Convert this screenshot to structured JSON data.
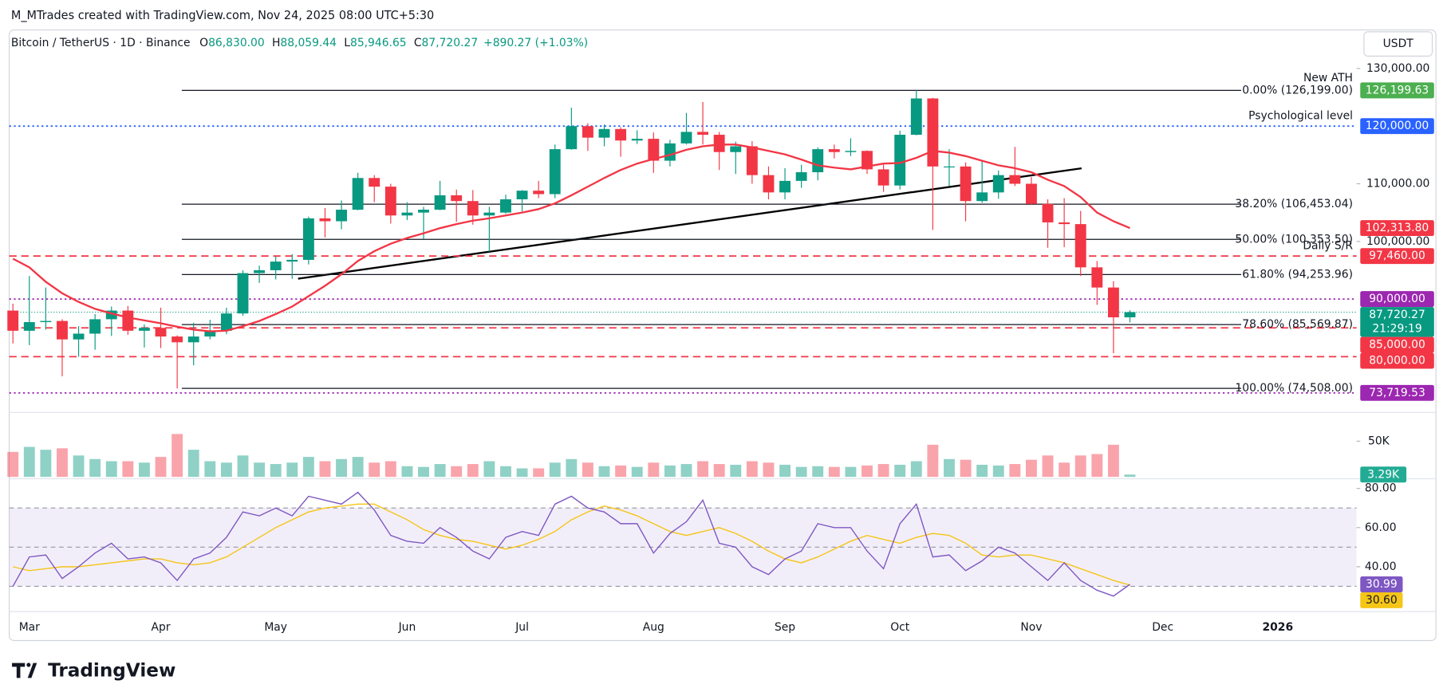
{
  "header": {
    "byline": "M_MTrades created with TradingView.com, Nov 24, 2025 08:00 UTC+5:30",
    "symbol": "Bitcoin / TetherUS · 1D · Binance",
    "ohlc": [
      [
        "O",
        "86,830.00"
      ],
      [
        "H",
        "88,059.44"
      ],
      [
        "L",
        "85,946.65"
      ],
      [
        "C",
        "87,720.27"
      ]
    ],
    "change": "+890.27 (+1.03%)",
    "currency": "USDT"
  },
  "footer": {
    "brand": "TradingView"
  },
  "chart_data": {
    "type": "candlestick",
    "categories": [
      null,
      "Mar",
      null,
      null,
      null,
      null,
      null,
      null,
      null,
      "Apr",
      null,
      null,
      null,
      null,
      null,
      null,
      "May",
      null,
      null,
      null,
      null,
      null,
      null,
      null,
      "Jun",
      null,
      null,
      null,
      null,
      null,
      null,
      "Jul",
      null,
      null,
      null,
      null,
      null,
      null,
      null,
      "Aug",
      null,
      null,
      null,
      null,
      null,
      null,
      null,
      "Sep",
      null,
      null,
      null,
      null,
      null,
      null,
      "Oct",
      null,
      null,
      null,
      null,
      null,
      null,
      null,
      "Nov",
      null,
      null,
      null,
      null,
      null,
      null,
      null,
      "Dec",
      null,
      null,
      null,
      null,
      null,
      null,
      "2026",
      null
    ],
    "open": [
      88000,
      84500,
      86000,
      86200,
      83000,
      84000,
      86500,
      88000,
      84500,
      85000,
      83500,
      82500,
      83500,
      84500,
      87500,
      94500,
      95000,
      96500,
      96800,
      104000,
      103500,
      105500,
      111000,
      109500,
      104500,
      105000,
      105500,
      108000,
      107000,
      104500,
      105000,
      107300,
      108800,
      108200,
      116000,
      120000,
      118000,
      119500,
      117500,
      117800,
      114000,
      117000,
      119000,
      118500,
      115500,
      116500,
      111500,
      108500,
      110500,
      112000,
      116000,
      115500,
      115700,
      112500,
      109700,
      118500,
      124800,
      113000,
      113000,
      107000,
      108500,
      111500,
      110000,
      106500,
      103300,
      103000,
      95500,
      92000,
      86830,
      null,
      null,
      null,
      null,
      null,
      null,
      null,
      null,
      null,
      null
    ],
    "high": [
      89200,
      94000,
      92000,
      86500,
      85300,
      87400,
      88700,
      88800,
      85600,
      88500,
      83700,
      85900,
      86400,
      88500,
      95000,
      95800,
      97400,
      97800,
      104300,
      105800,
      107100,
      111900,
      111500,
      110000,
      106800,
      106000,
      110500,
      109000,
      108900,
      106000,
      108100,
      108900,
      110500,
      116800,
      123200,
      120500,
      120300,
      119800,
      119300,
      118900,
      117600,
      122300,
      124200,
      119000,
      117300,
      117400,
      113000,
      112700,
      113300,
      116300,
      116800,
      117900,
      115800,
      113300,
      119200,
      126199,
      124900,
      116000,
      113700,
      114000,
      112300,
      116400,
      111200,
      107300,
      107500,
      105300,
      96600,
      93100,
      88059.44,
      null,
      null,
      null,
      null,
      null,
      null,
      null,
      null,
      null,
      null
    ],
    "low": [
      82300,
      82000,
      84700,
      76600,
      80000,
      81200,
      83600,
      83800,
      81600,
      81500,
      74500,
      78500,
      83000,
      83900,
      87100,
      92800,
      93400,
      93500,
      96000,
      100700,
      102100,
      105400,
      106800,
      103100,
      103700,
      100400,
      105400,
      103400,
      102900,
      98200,
      104800,
      105200,
      107500,
      107500,
      115900,
      115700,
      116500,
      114700,
      116900,
      111900,
      113000,
      116800,
      116800,
      112400,
      111700,
      110000,
      107300,
      107300,
      109300,
      110600,
      114400,
      114800,
      111700,
      108600,
      109000,
      118400,
      102000,
      109600,
      103500,
      106700,
      107400,
      109600,
      106300,
      98900,
      99000,
      94000,
      89000,
      80600,
      85946.65,
      null,
      null,
      null,
      null,
      null,
      null,
      null,
      null,
      null,
      null
    ],
    "close": [
      84500,
      86000,
      86200,
      83000,
      84000,
      86500,
      88000,
      84500,
      85000,
      83500,
      82500,
      83500,
      84500,
      87500,
      94500,
      95000,
      96500,
      96800,
      104000,
      103500,
      105500,
      111000,
      109500,
      104500,
      105000,
      105500,
      108000,
      107000,
      104500,
      105000,
      107300,
      108800,
      108200,
      116000,
      120000,
      118000,
      119500,
      117500,
      117800,
      114000,
      117000,
      119000,
      118500,
      115500,
      116500,
      111500,
      108500,
      110500,
      112000,
      116000,
      115500,
      115700,
      112500,
      109700,
      118500,
      124800,
      113000,
      113000,
      107000,
      108500,
      111500,
      110000,
      106500,
      103300,
      103000,
      95500,
      92000,
      86830,
      87720.27,
      null,
      null,
      null,
      null,
      null,
      null,
      null,
      null,
      null,
      null
    ],
    "colors": {
      "up": "#089981",
      "down": "#f23645"
    },
    "ylim": [
      70500,
      136200
    ],
    "yticks": [
      {
        "value": 130000,
        "label": "130,000.00"
      },
      {
        "value": 110000,
        "label": "110,000.00"
      },
      {
        "value": 100000,
        "label": "100,000.00"
      }
    ],
    "ma": {
      "color": "#f23645",
      "values": [
        97000,
        95500,
        93000,
        91000,
        89500,
        88300,
        87500,
        86800,
        86300,
        85800,
        85200,
        84700,
        84400,
        84500,
        85300,
        86200,
        87400,
        88700,
        90500,
        92300,
        94300,
        96600,
        98300,
        99600,
        100600,
        101400,
        102300,
        103000,
        103600,
        104000,
        104500,
        105000,
        105600,
        106600,
        108000,
        109500,
        111000,
        112400,
        113500,
        114300,
        115000,
        115900,
        116500,
        116800,
        116800,
        116300,
        115700,
        115100,
        114200,
        113200,
        112800,
        112500,
        113000,
        113500,
        113600,
        114500,
        115700,
        115400,
        114800,
        114000,
        113200,
        112700,
        112000,
        110700,
        109600,
        107700,
        105000,
        103500,
        102313.8,
        null,
        null,
        null,
        null,
        null,
        null,
        null,
        null,
        null,
        null
      ]
    },
    "fib": [
      {
        "value": 126199,
        "label": "0.00% (126,199.00)",
        "note": "New ATH",
        "note_color": "#4caf50"
      },
      {
        "value": 106453.04,
        "label": "38.20% (106,453.04)"
      },
      {
        "value": 100353.5,
        "label": "50.00% (100,353.50)"
      },
      {
        "value": 94253.96,
        "label": "61.80% (94,253.96)"
      },
      {
        "value": 85569.87,
        "label": "78.60% (85,569.87)"
      },
      {
        "value": 74508,
        "label": "100.00% (74,508.00)"
      }
    ],
    "levels": [
      {
        "value": 120000,
        "color": "#2962ff",
        "style": "dotted",
        "note": "Psychological level"
      },
      {
        "value": 97460,
        "color": "#f23645",
        "style": "dashed",
        "note": "Daily S/R"
      },
      {
        "value": 90000,
        "color": "#9c27b0",
        "style": "dotted"
      },
      {
        "value": 85000,
        "color": "#f23645",
        "style": "dashed"
      },
      {
        "value": 80000,
        "color": "#f23645",
        "style": "dashed"
      },
      {
        "value": 73719.53,
        "color": "#9c27b0",
        "style": "dotted"
      }
    ],
    "badges": [
      {
        "value": 126199.63,
        "label": "126,199.63",
        "color": "#4caf50"
      },
      {
        "value": 120000,
        "label": "120,000.00",
        "color": "#2962ff"
      },
      {
        "value": 102313.8,
        "label": "102,313.80",
        "color": "#f23645"
      },
      {
        "value": 97460,
        "label": "97,460.00",
        "color": "#f23645"
      },
      {
        "value": 90000,
        "label": "90,000.00",
        "color": "#9c27b0"
      },
      {
        "value": 87720.27,
        "label": "87,720.27",
        "color": "#089981",
        "sublabel": "21:29:19"
      },
      {
        "value": 85000,
        "label": "85,000.00",
        "color": "#f23645"
      },
      {
        "value": 80000,
        "label": "80,000.00",
        "color": "#f23645"
      },
      {
        "value": 73719.53,
        "label": "73,719.53",
        "color": "#9c27b0"
      }
    ],
    "volume": {
      "ylim": [
        0,
        85000
      ],
      "yticks": [
        {
          "value": 50000,
          "label": "50K"
        }
      ],
      "values": [
        35000,
        42000,
        38000,
        40000,
        30000,
        25000,
        22000,
        22000,
        20000,
        28000,
        60000,
        38000,
        22000,
        20000,
        30000,
        20000,
        18000,
        20000,
        28000,
        22000,
        25000,
        28000,
        20000,
        22000,
        15000,
        14000,
        18000,
        15000,
        18000,
        22000,
        15000,
        12000,
        12000,
        20000,
        25000,
        20000,
        15000,
        16000,
        14000,
        20000,
        16000,
        18000,
        22000,
        18000,
        17000,
        22000,
        20000,
        17000,
        14000,
        15000,
        14000,
        14000,
        16000,
        18000,
        17000,
        22000,
        45000,
        25000,
        24000,
        17000,
        16000,
        18000,
        24000,
        30000,
        20000,
        30000,
        32000,
        45000,
        3290,
        null,
        null,
        null,
        null,
        null,
        null,
        null,
        null,
        null,
        null
      ],
      "badges": [
        {
          "value": 3290,
          "label": "3.29K",
          "color": "#22ab94"
        }
      ]
    },
    "rsi": {
      "ylim": [
        19,
        83.5
      ],
      "yticks": [
        {
          "value": 80,
          "label": "80.00"
        },
        {
          "value": 60,
          "label": "60.00"
        },
        {
          "value": 40,
          "label": "40.00"
        }
      ],
      "levels": [
        70,
        50,
        30
      ],
      "color": "#7e57c2",
      "ma_color": "#f5c518",
      "values": [
        30,
        45,
        46,
        34,
        40,
        47,
        52,
        44,
        45,
        42,
        33,
        44,
        47,
        55,
        68,
        66,
        70,
        66,
        76,
        74,
        72,
        78,
        69,
        56,
        53,
        52,
        60,
        55,
        48,
        44,
        55,
        58,
        56,
        72,
        76,
        70,
        68,
        62,
        62,
        47,
        57,
        63,
        74,
        52,
        50,
        40,
        36,
        44,
        48,
        62,
        60,
        60,
        48,
        39,
        62,
        72,
        45,
        46,
        38,
        43,
        50,
        47,
        40,
        33,
        42,
        33,
        28,
        25,
        30.99,
        null,
        null,
        null,
        null,
        null,
        null,
        null,
        null,
        null,
        null
      ],
      "ma_values": [
        40,
        38,
        39,
        40,
        40,
        41,
        42,
        43,
        44,
        44,
        42,
        41,
        42,
        45,
        50,
        55,
        60,
        64,
        68,
        70,
        71,
        72,
        72,
        68,
        64,
        59,
        56,
        54,
        53,
        51,
        49,
        51,
        54,
        58,
        64,
        68,
        71,
        69,
        66,
        62,
        58,
        56,
        58,
        60,
        57,
        53,
        48,
        44,
        42,
        45,
        49,
        53,
        56,
        54,
        52,
        55,
        57,
        56,
        52,
        46,
        45,
        46,
        46,
        44,
        42,
        39,
        36,
        33,
        30.6,
        null,
        null,
        null,
        null,
        null,
        null,
        null,
        null,
        null,
        null
      ],
      "badges": [
        {
          "value": 30.99,
          "label": "30.99",
          "color": "#7e57c2"
        },
        {
          "value": 30.6,
          "label": "30.60",
          "color": "#f5c518",
          "text_color": "#131722"
        }
      ]
    }
  }
}
